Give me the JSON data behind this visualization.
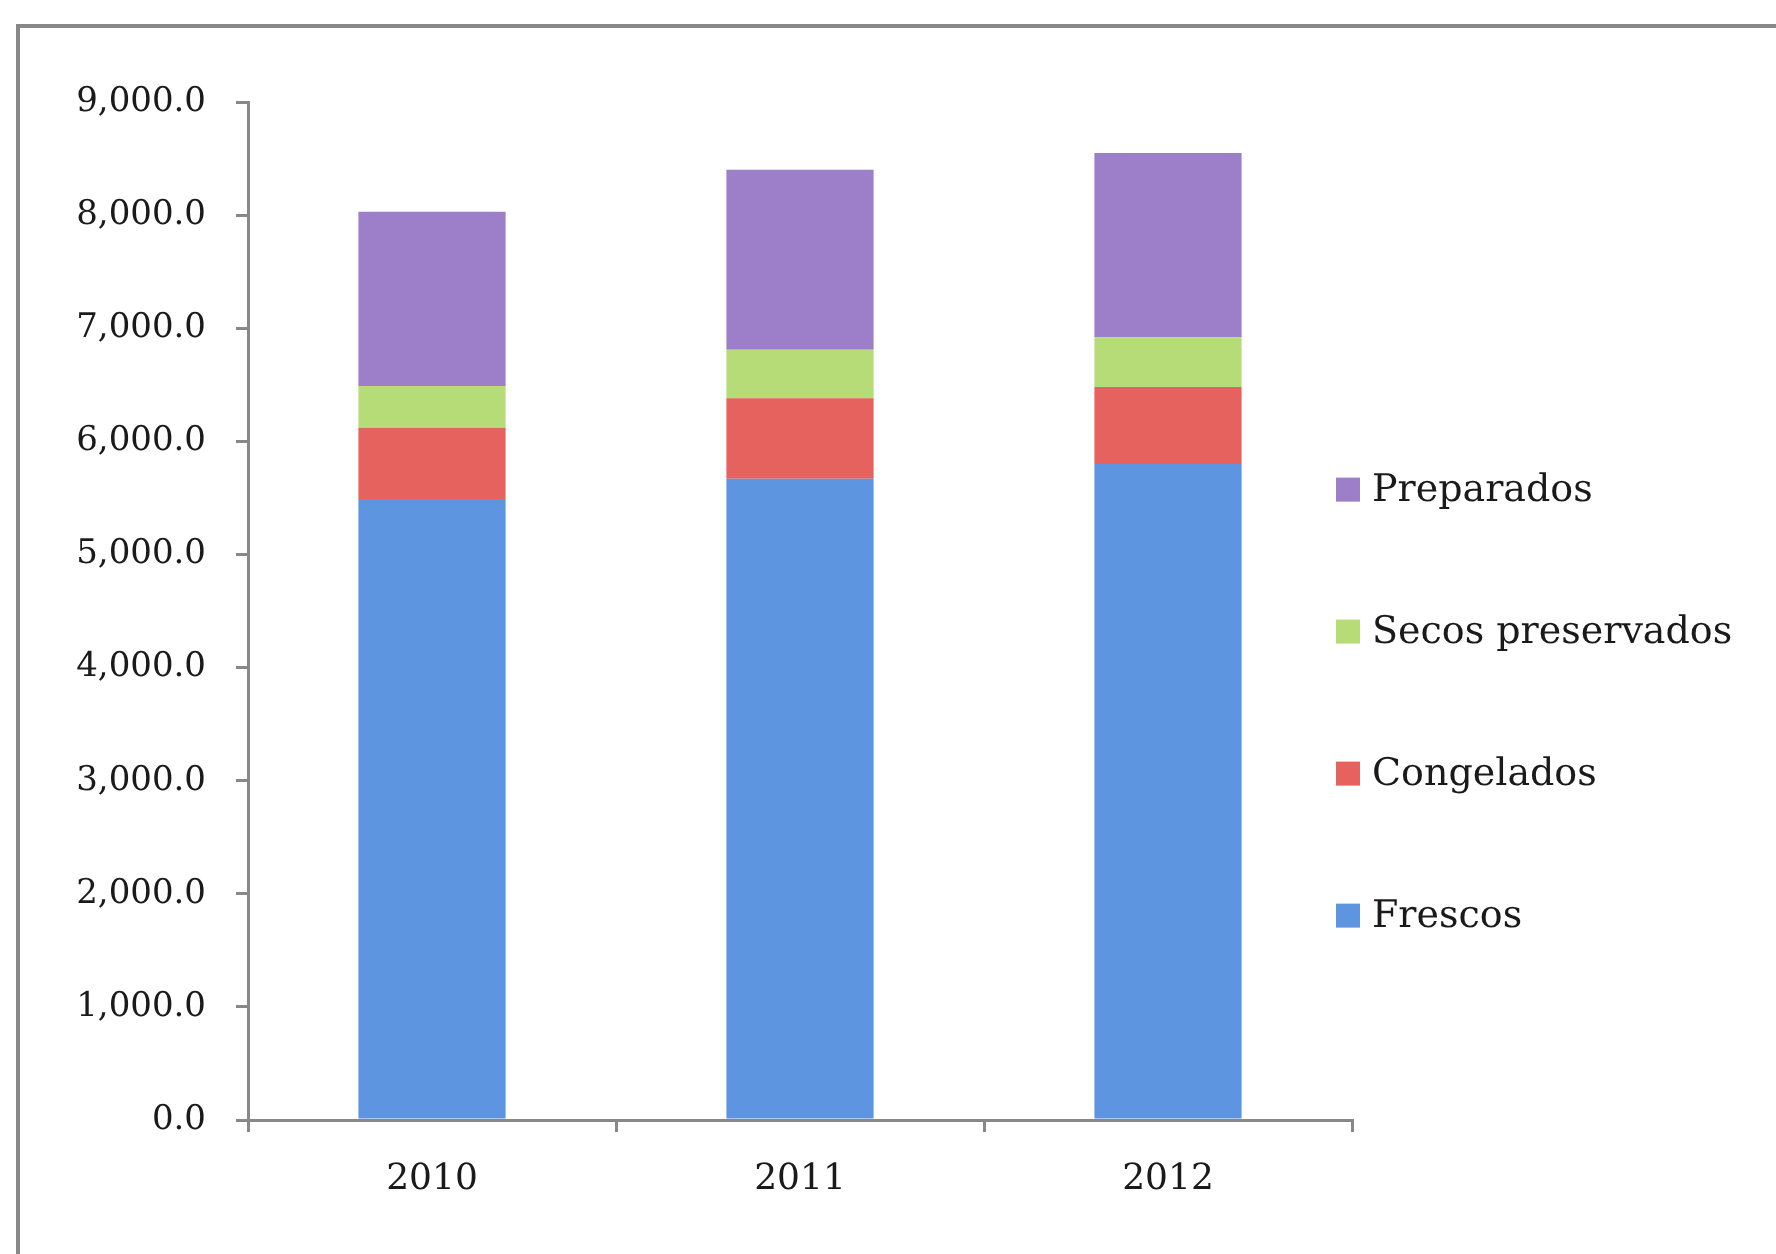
{
  "chart_data": {
    "type": "bar",
    "stacked": true,
    "categories": [
      "2010",
      "2011",
      "2012"
    ],
    "series": [
      {
        "name": "Frescos",
        "color": "#5d95e0",
        "values": [
          5490,
          5670,
          5800
        ]
      },
      {
        "name": "Congelados",
        "color": "#e5625e",
        "values": [
          630,
          710,
          680
        ]
      },
      {
        "name": "Secos preservados",
        "color": "#b5dc76",
        "values": [
          370,
          430,
          440
        ]
      },
      {
        "name": "Preparados",
        "color": "#9c7fc8",
        "values": [
          1540,
          1590,
          1630
        ]
      }
    ],
    "ylim": [
      0,
      9000
    ],
    "yticks": [
      {
        "value": 0,
        "label": "0.0"
      },
      {
        "value": 1000,
        "label": "1,000.0"
      },
      {
        "value": 2000,
        "label": "2,000.0"
      },
      {
        "value": 3000,
        "label": "3,000.0"
      },
      {
        "value": 4000,
        "label": "4,000.0"
      },
      {
        "value": 5000,
        "label": "5,000.0"
      },
      {
        "value": 6000,
        "label": "6,000.0"
      },
      {
        "value": 7000,
        "label": "7,000.0"
      },
      {
        "value": 8000,
        "label": "8,000.0"
      },
      {
        "value": 9000,
        "label": "9,000.0"
      }
    ],
    "grid": false,
    "legend": "right"
  }
}
